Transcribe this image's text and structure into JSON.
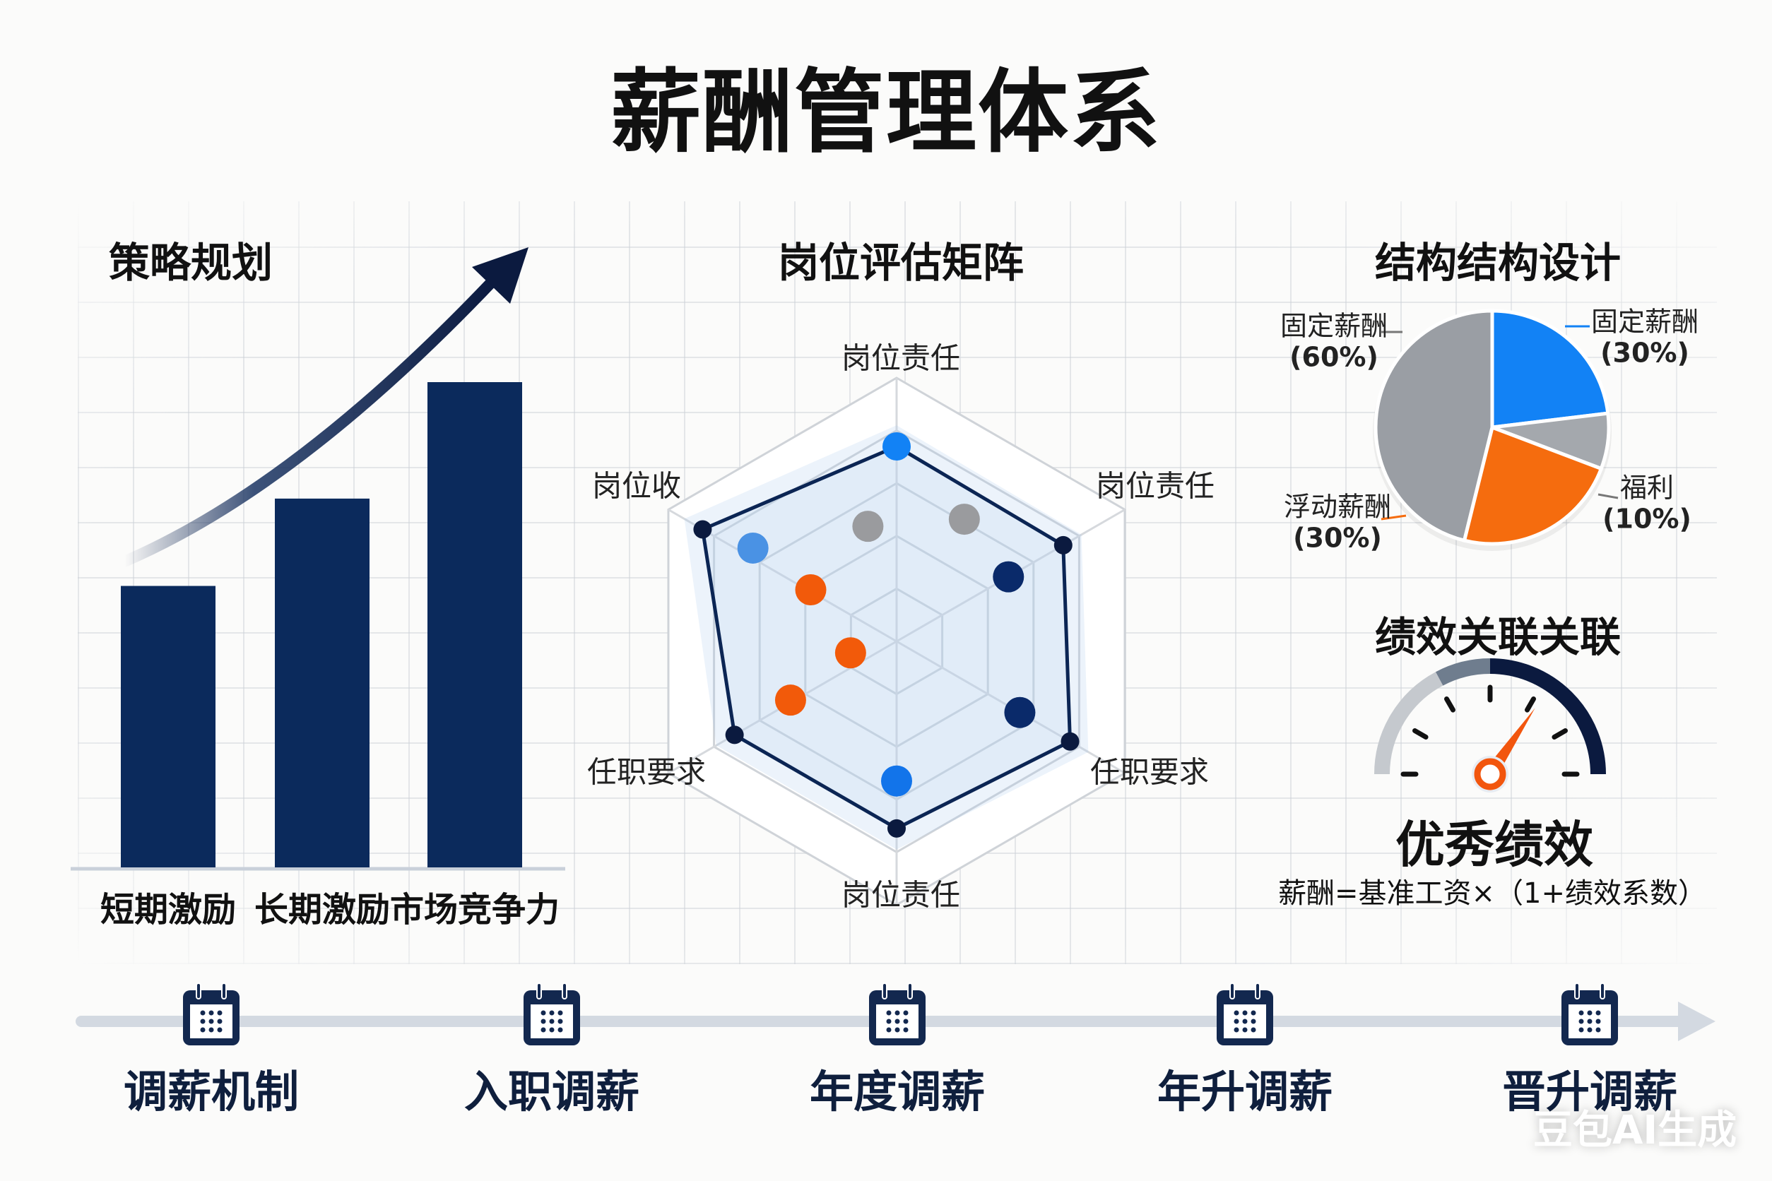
{
  "title": "薪酬管理体系",
  "colors": {
    "navy": "#0b2554",
    "blue": "#1282f5",
    "orange": "#f26b10",
    "gray": "#9a9ea4",
    "track": "#d3d9e1"
  },
  "strategy": {
    "title": "策略规划",
    "chart_data": {
      "type": "bar",
      "categories": [
        "短期激励",
        "长期激励",
        "市场竞争力"
      ],
      "values": [
        58,
        76,
        100
      ],
      "trend_arrow": "up"
    }
  },
  "matrix": {
    "title": "岗位评估矩阵",
    "chart_data": {
      "type": "radar",
      "axes": [
        "岗位责任",
        "岗位责任",
        "任职要求",
        "岗位责任",
        "任职要求",
        "岗位收"
      ],
      "rings": 5,
      "outline_values": [
        0.74,
        0.73,
        0.76,
        0.71,
        0.71,
        0.85
      ],
      "points": [
        {
          "angle_deg": 60,
          "r": 0.49,
          "color": "navy"
        },
        {
          "angle_deg": 120,
          "r": 0.54,
          "color": "navy"
        },
        {
          "angle_deg": 180,
          "r": 0.53,
          "color": "blue"
        },
        {
          "angle_deg": 303,
          "r": 0.65,
          "color": "lightblue"
        },
        {
          "angle_deg": 301,
          "r": 0.38,
          "color": "orange"
        },
        {
          "angle_deg": 256,
          "r": 0.18,
          "color": "orange"
        },
        {
          "angle_deg": 241,
          "r": 0.46,
          "color": "orange"
        },
        {
          "angle_deg": 346,
          "r": 0.45,
          "color": "gray"
        },
        {
          "angle_deg": 29,
          "r": 0.53,
          "color": "gray"
        }
      ]
    }
  },
  "structure": {
    "title": "结构结构设计",
    "chart_data": {
      "type": "pie",
      "slices": [
        {
          "label": "固定薪酬",
          "pct": "(30%)",
          "value": 30,
          "color": "#1282f5"
        },
        {
          "label": "福利",
          "pct": "(10%)",
          "value": 10,
          "color": "#a4a8ad"
        },
        {
          "label": "浮动薪酬",
          "pct": "(30%)",
          "value": 30,
          "color": "#f56c0e"
        },
        {
          "label": "固定薪酬",
          "pct": "(60%)",
          "value": 60,
          "color": "#9a9ea4"
        }
      ]
    }
  },
  "performance": {
    "title": "绩效关联关联",
    "gauge_level": 0.69,
    "rating": "优秀绩效",
    "formula": "薪酬=基准工资×（1+绩效系数）"
  },
  "timeline": {
    "items": [
      {
        "label": "调薪机制",
        "icon": "calendar-icon"
      },
      {
        "label": "入职调薪",
        "icon": "calendar-icon"
      },
      {
        "label": "年度调薪",
        "icon": "calendar-icon"
      },
      {
        "label": "年升调薪",
        "icon": "calendar-icon"
      },
      {
        "label": "晋升调薪",
        "icon": "calendar-icon"
      }
    ]
  },
  "watermark": "豆包AI生成"
}
